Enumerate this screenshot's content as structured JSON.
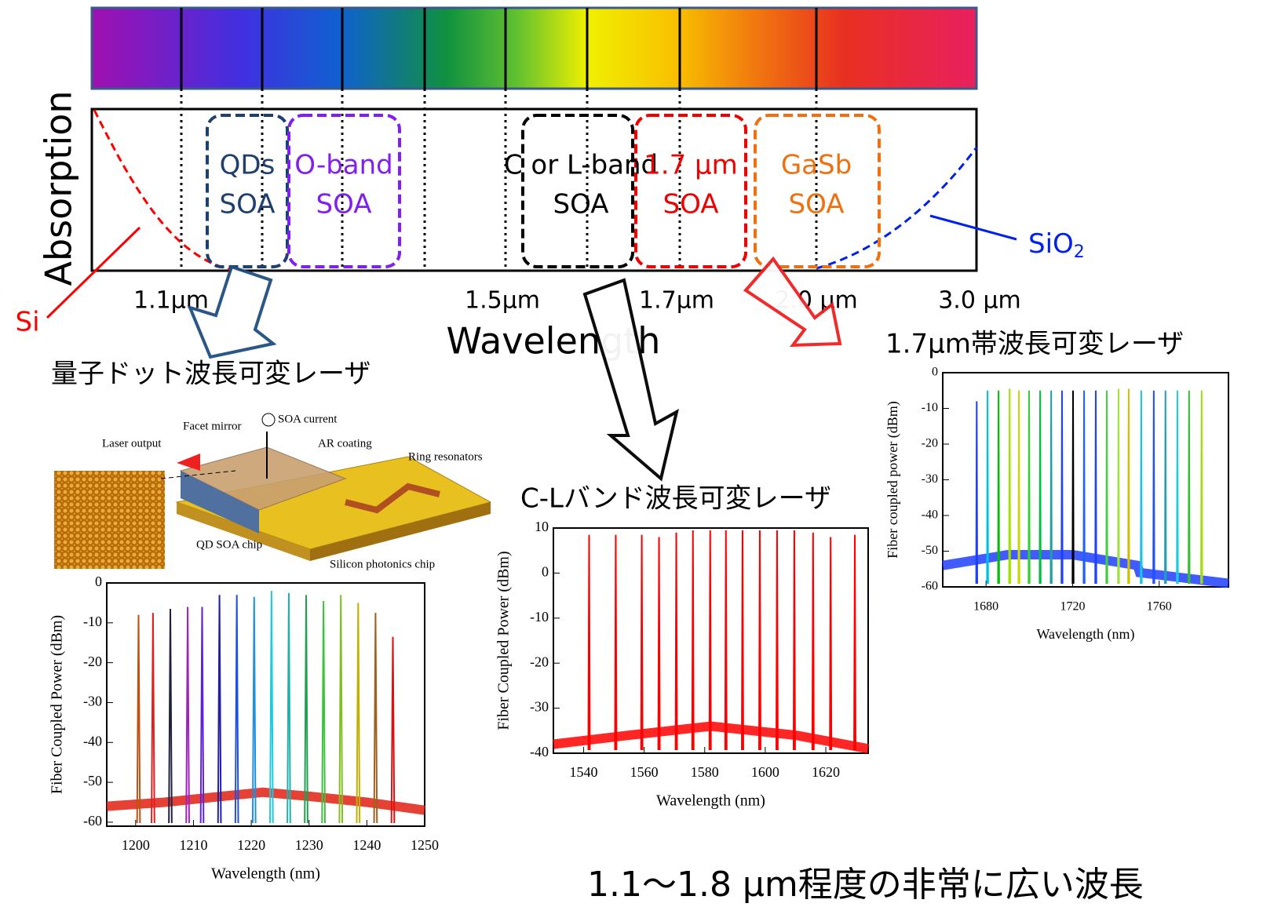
{
  "diagram": {
    "absorption_label": "Absorption",
    "wavelength_label": "Wavelength",
    "soa_boxes": [
      {
        "line1": "QDs",
        "line2": "SOA"
      },
      {
        "line1": "O-band",
        "line2": "SOA"
      },
      {
        "line1": "C or L-band",
        "line2": "SOA"
      },
      {
        "line1": "1.7 μm",
        "line2": "SOA"
      },
      {
        "line1": "GaSb",
        "line2": "SOA"
      }
    ],
    "wavelength_marks": [
      "1.1μm",
      "1.5μm",
      "1.7μm",
      "2.0 μm",
      "3.0 μm"
    ],
    "si_label": "Si",
    "sio2_label": {
      "main": "SiO",
      "sub": "2"
    }
  },
  "photo_labels": [
    "SOA current",
    "Facet mirror",
    "Laser output",
    "AR coating",
    "Ring resonators",
    "QD SOA chip",
    "Silicon photonics chip"
  ],
  "footer": "1.1～1.8 μm程度の非常に広い波長",
  "chart_data": [
    {
      "type": "spectrum",
      "title": "量子ドット波長可変レーザ",
      "xlabel": "Wavelength (nm)",
      "ylabel": "Fiber Coupled Power (dBm)",
      "xlim": [
        1195,
        1250
      ],
      "ylim": [
        -61,
        0
      ],
      "xticks": [
        1200,
        1210,
        1220,
        1230,
        1240,
        1250
      ],
      "yticks": [
        0,
        -10,
        -20,
        -30,
        -40,
        -50,
        -60
      ],
      "x": [
        1200.5,
        1203,
        1206,
        1209,
        1211.5,
        1214.5,
        1217.5,
        1220.5,
        1223.5,
        1226.5,
        1229.5,
        1232.5,
        1235.5,
        1238.5,
        1241.5,
        1244.5
      ],
      "values": [
        -8,
        -7.5,
        -6.5,
        -6,
        -6,
        -3,
        -3,
        -3.5,
        -2,
        -2.5,
        -3,
        -4.5,
        -3,
        -5,
        -7.5,
        -13.5
      ],
      "colors": [
        "#c05010",
        "#e02020",
        "#202040",
        "#a020c0",
        "#6020e0",
        "#2020a0",
        "#2050e0",
        "#2090e0",
        "#20c8e0",
        "#20b0b0",
        "#20a050",
        "#40c040",
        "#80c020",
        "#c0b000",
        "#a06020",
        "#e01010"
      ],
      "floor_x": [
        1195,
        1205,
        1215,
        1222,
        1230,
        1240,
        1250
      ],
      "floor": [
        -56,
        -55,
        -53.5,
        -52.5,
        -53.5,
        -55,
        -57
      ],
      "floor_color": "#e02010"
    },
    {
      "type": "spectrum",
      "title": "C-Lバンド波長可変レーザ",
      "xlabel": "Wavelength (nm)",
      "ylabel": "Fiber Coupled Power (dBm)",
      "xlim": [
        1530,
        1634
      ],
      "ylim": [
        -40,
        10
      ],
      "xticks": [
        1540,
        1560,
        1580,
        1600,
        1620
      ],
      "yticks": [
        10,
        0,
        -10,
        -20,
        -30,
        -40
      ],
      "x": [
        1541.8,
        1550.6,
        1559.2,
        1564.9,
        1570.6,
        1576.1,
        1581.8,
        1587,
        1592.5,
        1598.2,
        1603.9,
        1609.6,
        1615.8,
        1621.6,
        1629.6
      ],
      "values": [
        8.5,
        8.5,
        8.5,
        8,
        9,
        9.5,
        9.5,
        9.5,
        9.5,
        9.5,
        9.5,
        9.5,
        9,
        8,
        8.5
      ],
      "colors": [
        "#ff0000",
        "#ff0000",
        "#ff0000",
        "#ff0000",
        "#ff0000",
        "#ff0000",
        "#ff0000",
        "#ff0000",
        "#ff0000",
        "#ff0000",
        "#ff0000",
        "#ff0000",
        "#ff0000",
        "#ff0000",
        "#ff0000"
      ],
      "floor_x": [
        1530,
        1555,
        1582,
        1610,
        1634
      ],
      "floor": [
        -38,
        -36,
        -34,
        -36,
        -39
      ],
      "floor_color": "#ff0000"
    },
    {
      "type": "spectrum",
      "title": "1.7μm帯波長可変レーザ",
      "xlabel": "Wavelength (nm)",
      "ylabel": "Fiber coupled power (dBm)",
      "xlim": [
        1660,
        1792
      ],
      "ylim": [
        -60,
        0
      ],
      "xticks": [
        1680,
        1720,
        1760
      ],
      "yticks": [
        0,
        -10,
        -20,
        -30,
        -40,
        -50,
        -60
      ],
      "x": [
        1675.7,
        1680.7,
        1685.8,
        1690.9,
        1695.2,
        1699.9,
        1705,
        1710.1,
        1715.1,
        1720.2,
        1725.3,
        1730.7,
        1735.8,
        1741.2,
        1745.9,
        1751.7,
        1757.5,
        1762.9,
        1768.4,
        1773.8,
        1779.6
      ],
      "values": [
        -8,
        -5,
        -5,
        -4.5,
        -5,
        -5,
        -5,
        -5,
        -5,
        -5,
        -5,
        -5,
        -5,
        -4.5,
        -4.5,
        -5,
        -5,
        -5,
        -5,
        -5,
        -5
      ],
      "colors": [
        "#1f3fff",
        "#00c0e0",
        "#00c000",
        "#a0e000",
        "#c8d800",
        "#30d030",
        "#00c040",
        "#20a0a0",
        "#2040ff",
        "#000000",
        "#2060ff",
        "#2040ff",
        "#40d040",
        "#a0e040",
        "#d0c000",
        "#20c0e0",
        "#2050ff",
        "#20a0b0",
        "#20c8e0",
        "#30c030",
        "#a0e000"
      ],
      "floor_x": [
        1660,
        1690,
        1720,
        1750,
        1751,
        1792
      ],
      "floor": [
        -54,
        -51,
        -51,
        -54,
        -56,
        -59
      ],
      "floor_color": "#1f3fff"
    }
  ]
}
